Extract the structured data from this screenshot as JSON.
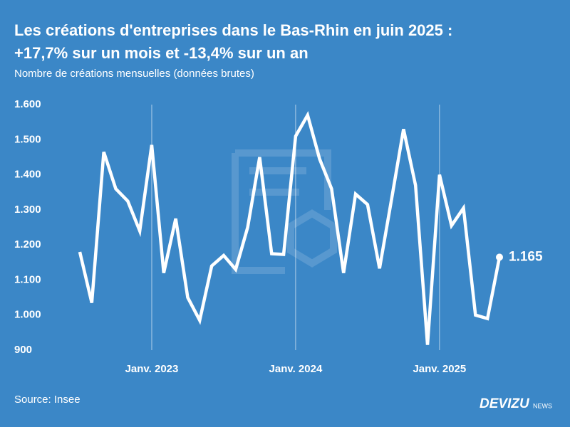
{
  "chart_data": {
    "type": "line",
    "title": "Les créations d'entreprises dans le Bas-Rhin en juin 2025 :",
    "title_line2": "+17,7% sur un mois et -13,4% sur un an",
    "subtitle": "Nombre de créations mensuelles (données brutes)",
    "source": "Source: Insee",
    "brand": "DEVIZU",
    "brand_suffix": "NEWS",
    "categories": [
      null,
      null,
      null,
      null,
      null,
      null,
      "Janv. 2023",
      null,
      null,
      null,
      null,
      null,
      null,
      null,
      null,
      null,
      null,
      null,
      "Janv. 2024",
      null,
      null,
      null,
      null,
      null,
      null,
      null,
      null,
      null,
      null,
      null,
      "Janv. 2025",
      null,
      null,
      null,
      null,
      null
    ],
    "series": [
      {
        "name": "Créations",
        "color": "#ffffff",
        "values": [
          1180,
          1035,
          1465,
          1360,
          1325,
          1240,
          1485,
          1120,
          1275,
          1050,
          985,
          1140,
          1170,
          1130,
          1250,
          1450,
          1175,
          1173,
          1510,
          1570,
          1445,
          1360,
          1120,
          1345,
          1315,
          1133,
          1330,
          1530,
          1370,
          915,
          1400,
          1255,
          1305,
          1000,
          990,
          1165
        ],
        "value_labels": [
          null,
          null,
          null,
          null,
          null,
          null,
          null,
          null,
          null,
          null,
          null,
          null,
          null,
          null,
          null,
          null,
          null,
          null,
          null,
          null,
          null,
          null,
          null,
          null,
          null,
          null,
          null,
          null,
          null,
          null,
          null,
          null,
          null,
          null,
          null,
          "1.165"
        ]
      }
    ],
    "ylim": [
      900,
      1600
    ],
    "yticks": [
      900,
      {
        "value": 1000,
        "label": "1.000"
      },
      {
        "value": 1100,
        "label": "1.100"
      },
      {
        "value": 1200,
        "label": "1.200"
      },
      {
        "value": 1300,
        "label": "1.300"
      },
      {
        "value": 1400,
        "label": "1.400"
      },
      {
        "value": 1500,
        "label": "1.500"
      },
      {
        "value": 1600,
        "label": "1.600"
      }
    ],
    "grid": "x-labeled"
  }
}
